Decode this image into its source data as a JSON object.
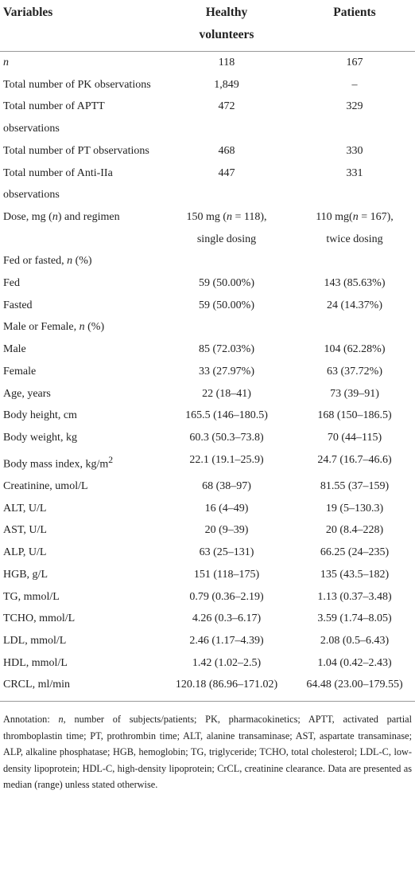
{
  "table": {
    "header": [
      "Variables",
      "Healthy volunteers",
      "Patients"
    ],
    "rows": [
      [
        [
          {
            "italic": "n"
          }
        ],
        "118",
        "167"
      ],
      [
        "Total number of PK observations",
        "1,849",
        "–"
      ],
      [
        "Total number of APTT observations",
        "472",
        "329"
      ],
      [
        "Total number of PT observations",
        "468",
        "330"
      ],
      [
        "Total number of Anti-IIa observations",
        "447",
        "331"
      ],
      [
        [
          "Dose, mg (",
          {
            "italic": "n"
          },
          ") and regimen"
        ],
        [
          "150 mg (",
          {
            "italic": "n"
          },
          " = 118), single dosing"
        ],
        [
          "110 mg(",
          {
            "italic": "n"
          },
          " = 167), twice dosing"
        ]
      ],
      [
        [
          "Fed or fasted, ",
          {
            "italic": "n"
          },
          " (%)"
        ],
        "",
        ""
      ],
      [
        "Fed",
        "59 (50.00%)",
        "143 (85.63%)"
      ],
      [
        "Fasted",
        "59 (50.00%)",
        "24 (14.37%)"
      ],
      [
        [
          "Male or Female, ",
          {
            "italic": "n"
          },
          " (%)"
        ],
        "",
        ""
      ],
      [
        "Male",
        "85 (72.03%)",
        "104 (62.28%)"
      ],
      [
        "Female",
        "33 (27.97%)",
        "63 (37.72%)"
      ],
      [
        "Age, years",
        "22 (18–41)",
        "73 (39–91)"
      ],
      [
        "Body height, cm",
        "165.5 (146–180.5)",
        "168 (150–186.5)"
      ],
      [
        "Body weight, kg",
        "60.3 (50.3–73.8)",
        "70 (44–115)"
      ],
      [
        [
          "Body mass index, kg/m",
          {
            "sup": "2"
          }
        ],
        "22.1 (19.1–25.9)",
        "24.7 (16.7–46.6)"
      ],
      [
        "Creatinine, umol/L",
        "68 (38–97)",
        "81.55 (37–159)"
      ],
      [
        "ALT, U/L",
        "16 (4–49)",
        "19 (5–130.3)"
      ],
      [
        "AST, U/L",
        "20 (9–39)",
        "20 (8.4–228)"
      ],
      [
        "ALP, U/L",
        "63 (25–131)",
        "66.25 (24–235)"
      ],
      [
        "HGB, g/L",
        "151 (118–175)",
        "135 (43.5–182)"
      ],
      [
        "TG, mmol/L",
        "0.79 (0.36–2.19)",
        "1.13 (0.37–3.48)"
      ],
      [
        "TCHO, mmol/L",
        "4.26 (0.3–6.17)",
        "3.59 (1.74–8.05)"
      ],
      [
        "LDL, mmol/L",
        "2.46 (1.17–4.39)",
        "2.08 (0.5–6.43)"
      ],
      [
        "HDL, mmol/L",
        "1.42 (1.02–2.5)",
        "1.04 (0.42–2.43)"
      ],
      [
        "CRCL, ml/min",
        "120.18 (86.96–171.02)",
        "64.48 (23.00–179.55)"
      ]
    ]
  },
  "annotation": [
    "Annotation: ",
    {
      "italic": "n"
    },
    ", number of subjects/patients; PK, pharmacokinetics; APTT, activated partial thromboplastin time; PT, prothrombin time; ALT, alanine transaminase; AST, aspartate transaminase; ALP, alkaline phosphatase; HGB, hemoglobin; TG, triglyceride; TCHO, total cholesterol; LDL-C, low-density lipoprotein; HDL-C, high-density lipoprotein; CrCL, creatinine clearance. Data are presented as median (range) unless stated otherwise."
  ]
}
